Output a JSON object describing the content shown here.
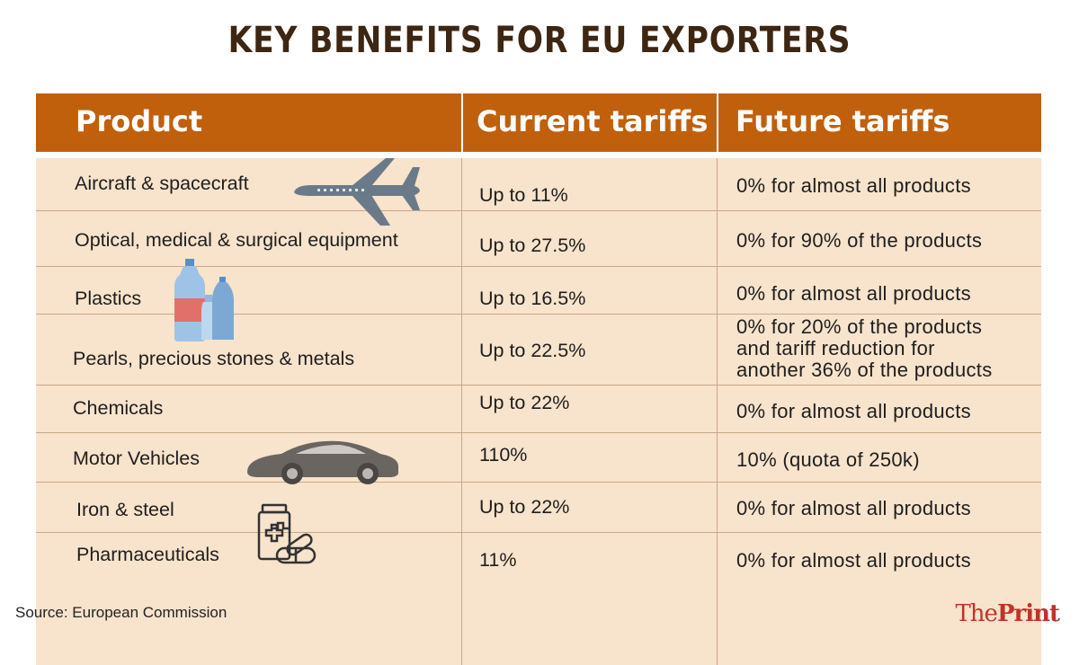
{
  "title": "KEY BENEFITS FOR EU EXPORTERS",
  "headers": {
    "product": "Product",
    "current": "Current tariffs",
    "future": "Future tariffs"
  },
  "rows": [
    {
      "product": "Aircraft & spacecraft",
      "current": "Up to 11%",
      "future": "0% for almost all products"
    },
    {
      "product": "Optical, medical & surgical equipment",
      "current": "Up to 27.5%",
      "future": "0% for 90% of the products"
    },
    {
      "product": "Plastics",
      "current": "Up to 16.5%",
      "future": "0% for almost all products"
    },
    {
      "product": "Pearls, precious stones & metals",
      "current": "Up to 22.5%",
      "future_lines": [
        "0% for 20% of the products",
        "and tariff reduction for",
        "another 36% of the products"
      ]
    },
    {
      "product": "Chemicals",
      "current": "Up to 22%",
      "future": "0% for almost all products"
    },
    {
      "product": "Motor Vehicles",
      "current": "110%",
      "future": "10% (quota of 250k)"
    },
    {
      "product": "Iron & steel",
      "current": "Up to 22%",
      "future": "0% for almost all products"
    },
    {
      "product": "Pharmaceuticals",
      "current": "11%",
      "future": "0% for almost all products"
    }
  ],
  "source": "Source: European Commission",
  "brand": {
    "prefix": "The",
    "suffix": "Print"
  },
  "colors": {
    "header": "#c0600d",
    "body": "#f8e3cc",
    "title": "#3d2612",
    "brand": "#c0322a"
  }
}
